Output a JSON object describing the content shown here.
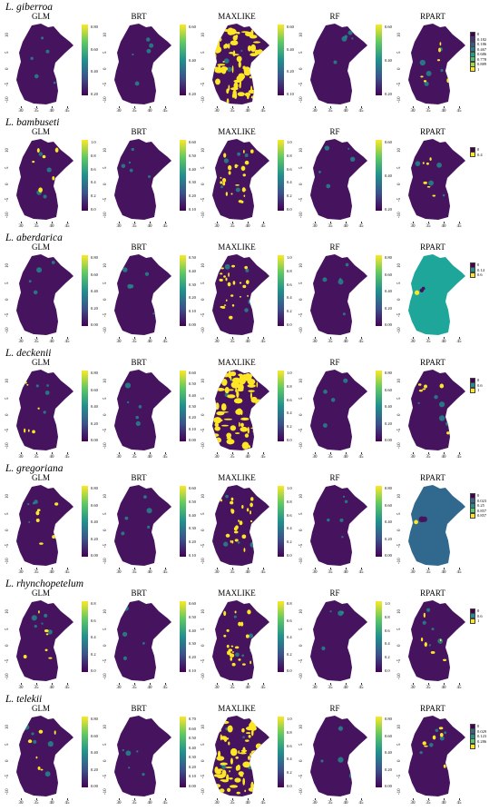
{
  "rows": [
    {
      "species": "L. giberroa",
      "models": [
        {
          "name": "GLM",
          "type": "cont",
          "ticks": [
            "0.80",
            "0.60",
            "0.40",
            "0.20"
          ],
          "overlay": "none"
        },
        {
          "name": "BRT",
          "type": "cont",
          "ticks": [
            "0.60",
            "0.40",
            "0.20"
          ],
          "overlay": "none"
        },
        {
          "name": "MAXLIKE",
          "type": "cont",
          "ticks": [
            "0.60",
            "0.40",
            "0.20",
            "0.10"
          ],
          "overlay": "heavy"
        },
        {
          "name": "RF",
          "type": "cont",
          "ticks": [
            "0.60",
            "0.40",
            "0.20"
          ],
          "overlay": "none"
        },
        {
          "name": "RPART",
          "type": "cat",
          "legend": [
            {
              "label": "0",
              "color": "#440154"
            },
            {
              "label": "0.182",
              "color": "#46327e"
            },
            {
              "label": "0.186",
              "color": "#365c8d"
            },
            {
              "label": "0.467",
              "color": "#277f8e"
            },
            {
              "label": "0.686",
              "color": "#1fa187"
            },
            {
              "label": "0.778",
              "color": "#4ac16d"
            },
            {
              "label": "0.889",
              "color": "#a0da39"
            },
            {
              "label": "1",
              "color": "#fde725"
            }
          ],
          "overlay": "light"
        }
      ]
    },
    {
      "species": "L. bambuseti",
      "models": [
        {
          "name": "GLM",
          "type": "cont",
          "ticks": [
            "1.0",
            "0.8",
            "0.6",
            "0.4",
            "0.2",
            "0.0"
          ],
          "overlay": "light"
        },
        {
          "name": "BRT",
          "type": "cont",
          "ticks": [
            "0.60",
            "0.50",
            "0.40",
            "0.30",
            "0.20",
            "0.10"
          ],
          "overlay": "none"
        },
        {
          "name": "MAXLIKE",
          "type": "cont",
          "ticks": [
            "1.0",
            "0.8",
            "0.6",
            "0.4",
            "0.2",
            "0.0"
          ],
          "overlay": "medium"
        },
        {
          "name": "RF",
          "type": "cont",
          "ticks": [
            "0.60",
            "0.40",
            "0.20"
          ],
          "overlay": "none"
        },
        {
          "name": "RPART",
          "type": "cat",
          "legend": [
            {
              "label": "0",
              "color": "#440154"
            },
            {
              "label": "0.4",
              "color": "#fde725"
            }
          ],
          "overlay": "light"
        }
      ]
    },
    {
      "species": "L. aberdarica",
      "models": [
        {
          "name": "GLM",
          "type": "cont",
          "ticks": [
            "0.80",
            "0.60",
            "0.40",
            "0.20",
            "0.00"
          ],
          "overlay": "none"
        },
        {
          "name": "BRT",
          "type": "cont",
          "ticks": [
            "0.50",
            "0.40",
            "0.30",
            "0.20",
            "0.10",
            "0.00"
          ],
          "overlay": "none"
        },
        {
          "name": "MAXLIKE",
          "type": "cont",
          "ticks": [
            "1.0",
            "0.8",
            "0.6",
            "0.4",
            "0.2",
            "0.0"
          ],
          "overlay": "medium"
        },
        {
          "name": "RF",
          "type": "cont",
          "ticks": [
            "0.80",
            "0.60",
            "0.40",
            "0.20",
            "0.00"
          ],
          "overlay": "none"
        },
        {
          "name": "RPART",
          "type": "cat",
          "fill": "#1fa69a",
          "legend": [
            {
              "label": "0",
              "color": "#440154"
            },
            {
              "label": "0.14",
              "color": "#21908d"
            },
            {
              "label": "0.6",
              "color": "#fde725"
            }
          ],
          "overlay": "none"
        }
      ]
    },
    {
      "species": "L. deckenii",
      "models": [
        {
          "name": "GLM",
          "type": "cont",
          "ticks": [
            "0.80",
            "0.60",
            "0.40",
            "0.20",
            "0.00"
          ],
          "overlay": "light"
        },
        {
          "name": "BRT",
          "type": "cont",
          "ticks": [
            "0.60",
            "0.50",
            "0.40",
            "0.30",
            "0.20",
            "0.10",
            "0.00"
          ],
          "overlay": "none"
        },
        {
          "name": "MAXLIKE",
          "type": "cont",
          "ticks": [
            "1.0",
            "0.8",
            "0.6",
            "0.4",
            "0.2",
            "0.0"
          ],
          "overlay": "heavy"
        },
        {
          "name": "RF",
          "type": "cont",
          "ticks": [
            "0.80",
            "0.60",
            "0.40",
            "0.20",
            "0.00"
          ],
          "overlay": "none"
        },
        {
          "name": "RPART",
          "type": "cat",
          "legend": [
            {
              "label": "0",
              "color": "#440154"
            },
            {
              "label": "0.6",
              "color": "#21908d"
            },
            {
              "label": "1",
              "color": "#fde725"
            }
          ],
          "overlay": "light"
        }
      ]
    },
    {
      "species": "L. gregoriana",
      "models": [
        {
          "name": "GLM",
          "type": "cont",
          "ticks": [
            "0.80",
            "0.60",
            "0.40",
            "0.20",
            "0.00"
          ],
          "overlay": "light"
        },
        {
          "name": "BRT",
          "type": "cont",
          "ticks": [
            "0.60",
            "0.50",
            "0.40",
            "0.30",
            "0.20",
            "0.10"
          ],
          "overlay": "none"
        },
        {
          "name": "MAXLIKE",
          "type": "cont",
          "ticks": [
            "1.0",
            "0.8",
            "0.6",
            "0.4",
            "0.2",
            "0.0"
          ],
          "overlay": "medium"
        },
        {
          "name": "RF",
          "type": "cont",
          "ticks": [
            "0.80",
            "0.60",
            "0.40",
            "0.20",
            "0.00"
          ],
          "overlay": "none"
        },
        {
          "name": "RPART",
          "type": "cat",
          "fill": "#31688e",
          "legend": [
            {
              "label": "0",
              "color": "#440154"
            },
            {
              "label": "0.023",
              "color": "#31688e"
            },
            {
              "label": "0.25",
              "color": "#21908d"
            },
            {
              "label": "0.857",
              "color": "#5dc863"
            },
            {
              "label": "0.857",
              "color": "#fde725"
            }
          ],
          "overlay": "none"
        }
      ]
    },
    {
      "species": "L. rhynchopetelum",
      "models": [
        {
          "name": "GLM",
          "type": "cont",
          "ticks": [
            "0.8",
            "0.6",
            "0.4",
            "0.2",
            "0.0"
          ],
          "overlay": "light"
        },
        {
          "name": "BRT",
          "type": "cont",
          "ticks": [
            "0.60",
            "0.50",
            "0.40",
            "0.30",
            "0.20",
            "0.10"
          ],
          "overlay": "none"
        },
        {
          "name": "MAXLIKE",
          "type": "cont",
          "ticks": [
            "0.8",
            "0.6",
            "0.4",
            "0.2",
            "0.0"
          ],
          "overlay": "medium"
        },
        {
          "name": "RF",
          "type": "cont",
          "ticks": [
            "1.0",
            "0.8",
            "0.6",
            "0.4",
            "0.2",
            "0.0"
          ],
          "overlay": "none"
        },
        {
          "name": "RPART",
          "type": "cat",
          "legend": [
            {
              "label": "0",
              "color": "#440154"
            },
            {
              "label": "0.6",
              "color": "#21908d"
            },
            {
              "label": "1",
              "color": "#fde725"
            }
          ],
          "overlay": "light"
        }
      ]
    },
    {
      "species": "L. telekii",
      "models": [
        {
          "name": "GLM",
          "type": "cont",
          "ticks": [
            "0.80",
            "0.60",
            "0.40",
            "0.20",
            "0.00"
          ],
          "overlay": "light"
        },
        {
          "name": "BRT",
          "type": "cont",
          "ticks": [
            "0.70",
            "0.60",
            "0.50",
            "0.40",
            "0.30",
            "0.20",
            "0.10",
            "0.00"
          ],
          "overlay": "none"
        },
        {
          "name": "MAXLIKE",
          "type": "cont",
          "ticks": [
            "1.0",
            "0.8",
            "0.6",
            "0.4",
            "0.2",
            "0.0"
          ],
          "overlay": "heavy"
        },
        {
          "name": "RF",
          "type": "cont",
          "ticks": [
            "0.80",
            "0.60",
            "0.40",
            "0.20",
            "0.00"
          ],
          "overlay": "none"
        },
        {
          "name": "RPART",
          "type": "cat",
          "legend": [
            {
              "label": "0",
              "color": "#440154"
            },
            {
              "label": "0.029",
              "color": "#31688e"
            },
            {
              "label": "0.123",
              "color": "#21908d"
            },
            {
              "label": "0.286",
              "color": "#5dc863"
            },
            {
              "label": "1",
              "color": "#fde725"
            }
          ],
          "overlay": "light"
        }
      ]
    }
  ],
  "axes": {
    "y_ticks": [
      "10",
      "5",
      "0",
      "-5",
      "-10"
    ],
    "x_ticks": [
      "30",
      "35",
      "40",
      "45"
    ]
  },
  "colors": {
    "base": "#46135f",
    "mid": "#21908d",
    "high": "#fde725"
  }
}
